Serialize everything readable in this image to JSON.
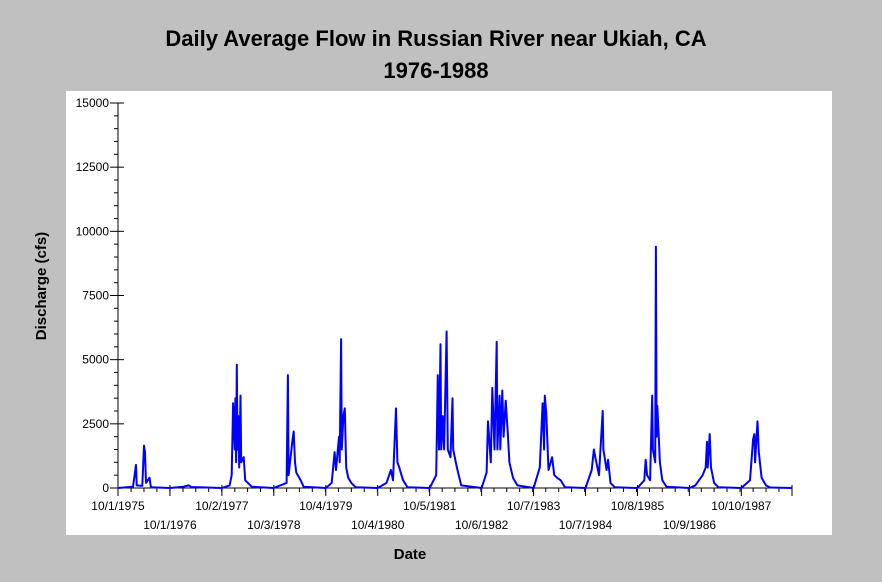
{
  "chart_data": {
    "type": "line",
    "title": "Daily Average Flow in Russian River near Ukiah, CA",
    "subtitle": "1976-1988",
    "xlabel": "Date",
    "ylabel": "Discharge (cfs)",
    "ylim": [
      0,
      15000
    ],
    "xlim": [
      "1975-10-01",
      "1988-10-01"
    ],
    "y_ticks": [
      0,
      2500,
      5000,
      7500,
      10000,
      12500,
      15000
    ],
    "y_tick_labels": [
      "0",
      "2500",
      "5000",
      "7500",
      "10000",
      "12500",
      "15000"
    ],
    "x_ticks": [
      {
        "date": "1975-10-01",
        "label": "10/1/1975",
        "row": 1
      },
      {
        "date": "1976-10-01",
        "label": "10/1/1976",
        "row": 2
      },
      {
        "date": "1977-10-02",
        "label": "10/2/1977",
        "row": 1
      },
      {
        "date": "1978-10-03",
        "label": "10/3/1978",
        "row": 2
      },
      {
        "date": "1979-10-04",
        "label": "10/4/1979",
        "row": 1
      },
      {
        "date": "1980-10-04",
        "label": "10/4/1980",
        "row": 2
      },
      {
        "date": "1981-10-05",
        "label": "10/5/1981",
        "row": 1
      },
      {
        "date": "1982-10-06",
        "label": "10/6/1982",
        "row": 2
      },
      {
        "date": "1983-10-07",
        "label": "10/7/1983",
        "row": 1
      },
      {
        "date": "1984-10-07",
        "label": "10/7/1984",
        "row": 2
      },
      {
        "date": "1985-10-08",
        "label": "10/8/1985",
        "row": 1
      },
      {
        "date": "1986-10-09",
        "label": "10/9/1986",
        "row": 2
      },
      {
        "date": "1987-10-10",
        "label": "10/10/1987",
        "row": 1
      }
    ],
    "grid": false,
    "series": [
      {
        "color": "#0000ff",
        "points": [
          [
            "1975-10-01",
            0
          ],
          [
            "1976-01-15",
            50
          ],
          [
            "1976-02-05",
            900
          ],
          [
            "1976-02-10",
            100
          ],
          [
            "1976-03-20",
            80
          ],
          [
            "1976-04-01",
            1650
          ],
          [
            "1976-04-08",
            1400
          ],
          [
            "1976-04-15",
            200
          ],
          [
            "1976-05-10",
            400
          ],
          [
            "1976-05-20",
            30
          ],
          [
            "1976-10-01",
            0
          ],
          [
            "1977-01-05",
            50
          ],
          [
            "1977-02-10",
            100
          ],
          [
            "1977-03-01",
            40
          ],
          [
            "1977-10-02",
            0
          ],
          [
            "1977-11-25",
            100
          ],
          [
            "1977-12-10",
            500
          ],
          [
            "1977-12-20",
            3300
          ],
          [
            "1978-01-01",
            1500
          ],
          [
            "1978-01-05",
            3500
          ],
          [
            "1978-01-10",
            1000
          ],
          [
            "1978-01-15",
            4800
          ],
          [
            "1978-01-20",
            1500
          ],
          [
            "1978-01-25",
            2800
          ],
          [
            "1978-02-01",
            800
          ],
          [
            "1978-02-10",
            3600
          ],
          [
            "1978-02-15",
            1000
          ],
          [
            "1978-03-05",
            1200
          ],
          [
            "1978-03-15",
            300
          ],
          [
            "1978-05-01",
            50
          ],
          [
            "1978-10-03",
            0
          ],
          [
            "1979-01-01",
            200
          ],
          [
            "1979-01-10",
            4400
          ],
          [
            "1979-01-15",
            500
          ],
          [
            "1979-02-10",
            1800
          ],
          [
            "1979-02-20",
            2200
          ],
          [
            "1979-03-01",
            1000
          ],
          [
            "1979-03-10",
            600
          ],
          [
            "1979-04-10",
            300
          ],
          [
            "1979-05-01",
            50
          ],
          [
            "1979-10-04",
            0
          ],
          [
            "1979-11-15",
            200
          ],
          [
            "1979-12-05",
            1400
          ],
          [
            "1979-12-15",
            700
          ],
          [
            "1980-01-05",
            2000
          ],
          [
            "1980-01-10",
            1000
          ],
          [
            "1980-01-15",
            3500
          ],
          [
            "1980-01-20",
            5800
          ],
          [
            "1980-01-25",
            1500
          ],
          [
            "1980-02-05",
            2800
          ],
          [
            "1980-02-15",
            3100
          ],
          [
            "1980-02-25",
            800
          ],
          [
            "1980-03-10",
            400
          ],
          [
            "1980-04-01",
            200
          ],
          [
            "1980-05-01",
            30
          ],
          [
            "1980-10-04",
            0
          ],
          [
            "1980-12-05",
            200
          ],
          [
            "1981-01-05",
            700
          ],
          [
            "1981-01-20",
            300
          ],
          [
            "1981-02-10",
            3100
          ],
          [
            "1981-02-20",
            1000
          ],
          [
            "1981-03-05",
            800
          ],
          [
            "1981-03-15",
            600
          ],
          [
            "1981-04-01",
            300
          ],
          [
            "1981-05-01",
            30
          ],
          [
            "1981-10-05",
            0
          ],
          [
            "1981-11-20",
            500
          ],
          [
            "1981-12-01",
            4400
          ],
          [
            "1981-12-10",
            1500
          ],
          [
            "1981-12-20",
            5600
          ],
          [
            "1981-12-25",
            1500
          ],
          [
            "1982-01-05",
            2800
          ],
          [
            "1982-01-15",
            1500
          ],
          [
            "1982-02-01",
            6100
          ],
          [
            "1982-02-10",
            1500
          ],
          [
            "1982-03-01",
            1200
          ],
          [
            "1982-03-15",
            3500
          ],
          [
            "1982-03-20",
            1500
          ],
          [
            "1982-04-15",
            800
          ],
          [
            "1982-05-15",
            100
          ],
          [
            "1982-10-06",
            0
          ],
          [
            "1982-11-10",
            600
          ],
          [
            "1982-11-20",
            2600
          ],
          [
            "1982-12-10",
            1000
          ],
          [
            "1982-12-20",
            3900
          ],
          [
            "1983-01-05",
            1500
          ],
          [
            "1983-01-20",
            5700
          ],
          [
            "1983-01-25",
            1500
          ],
          [
            "1983-02-10",
            3600
          ],
          [
            "1983-02-15",
            1500
          ],
          [
            "1983-03-01",
            3800
          ],
          [
            "1983-03-10",
            2000
          ],
          [
            "1983-03-25",
            3400
          ],
          [
            "1983-04-10",
            2000
          ],
          [
            "1983-04-20",
            1000
          ],
          [
            "1983-05-15",
            400
          ],
          [
            "1983-06-15",
            100
          ],
          [
            "1983-10-07",
            0
          ],
          [
            "1983-11-20",
            800
          ],
          [
            "1983-12-10",
            3300
          ],
          [
            "1983-12-20",
            1500
          ],
          [
            "1983-12-25",
            3600
          ],
          [
            "1984-01-05",
            2900
          ],
          [
            "1984-01-20",
            700
          ],
          [
            "1984-02-15",
            1200
          ],
          [
            "1984-03-01",
            500
          ],
          [
            "1984-03-20",
            400
          ],
          [
            "1984-04-15",
            300
          ],
          [
            "1984-05-15",
            30
          ],
          [
            "1984-10-07",
            0
          ],
          [
            "1984-11-20",
            700
          ],
          [
            "1984-12-05",
            1500
          ],
          [
            "1984-12-15",
            1200
          ],
          [
            "1985-01-10",
            500
          ],
          [
            "1985-02-05",
            3000
          ],
          [
            "1985-02-10",
            1500
          ],
          [
            "1985-03-05",
            700
          ],
          [
            "1985-03-15",
            1100
          ],
          [
            "1985-04-01",
            200
          ],
          [
            "1985-05-01",
            30
          ],
          [
            "1985-10-08",
            0
          ],
          [
            "1985-11-25",
            300
          ],
          [
            "1985-12-05",
            1100
          ],
          [
            "1985-12-15",
            500
          ],
          [
            "1986-01-05",
            300
          ],
          [
            "1986-01-20",
            3600
          ],
          [
            "1986-01-25",
            1500
          ],
          [
            "1986-02-10",
            1000
          ],
          [
            "1986-02-15",
            9400
          ],
          [
            "1986-02-20",
            2000
          ],
          [
            "1986-02-25",
            3200
          ],
          [
            "1986-03-05",
            2300
          ],
          [
            "1986-03-15",
            1000
          ],
          [
            "1986-04-01",
            300
          ],
          [
            "1986-05-01",
            50
          ],
          [
            "1986-10-09",
            0
          ],
          [
            "1986-11-20",
            100
          ],
          [
            "1987-01-10",
            500
          ],
          [
            "1987-02-01",
            800
          ],
          [
            "1987-02-10",
            1800
          ],
          [
            "1987-02-15",
            800
          ],
          [
            "1987-03-01",
            2100
          ],
          [
            "1987-03-10",
            800
          ],
          [
            "1987-04-01",
            200
          ],
          [
            "1987-05-01",
            30
          ],
          [
            "1987-10-10",
            0
          ],
          [
            "1987-12-10",
            300
          ],
          [
            "1988-01-01",
            1900
          ],
          [
            "1988-01-10",
            2100
          ],
          [
            "1988-01-15",
            1000
          ],
          [
            "1988-02-01",
            2600
          ],
          [
            "1988-02-10",
            1400
          ],
          [
            "1988-03-01",
            400
          ],
          [
            "1988-04-01",
            100
          ],
          [
            "1988-05-01",
            20
          ],
          [
            "1988-10-01",
            0
          ]
        ]
      }
    ]
  },
  "colors": {
    "background": "#c0c0c0",
    "plot_area": "#ffffff",
    "line": "#0000ff",
    "axis": "#000000"
  }
}
